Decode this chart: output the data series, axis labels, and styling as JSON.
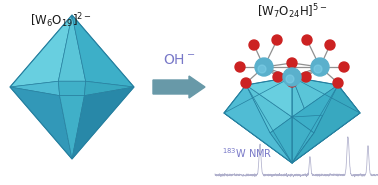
{
  "bg_color": "#ffffff",
  "text_color": "#1a1a1a",
  "arrow_label": "OH⁻",
  "arrow_label_color": "#7878c8",
  "nmr_label": "¹⁸³W NMR",
  "nmr_label_color": "#7878c8",
  "face_colors": {
    "upper_left": "#68cfe0",
    "upper_right": "#3dafc8",
    "lower_left": "#3298b8",
    "lower_right": "#2888a8",
    "mid_left": "#50bcd4",
    "mid_right": "#38a8c0",
    "front_top": "#5ac5d8",
    "front_bot": "#40b0c8"
  },
  "edge_color": "#2580a0",
  "arrow_color": "#6899a8",
  "ball_W_color": "#5ab0cc",
  "ball_O_color": "#cc2222",
  "stick_color": "#909090",
  "nmr_line_color": "#b0b0cc"
}
